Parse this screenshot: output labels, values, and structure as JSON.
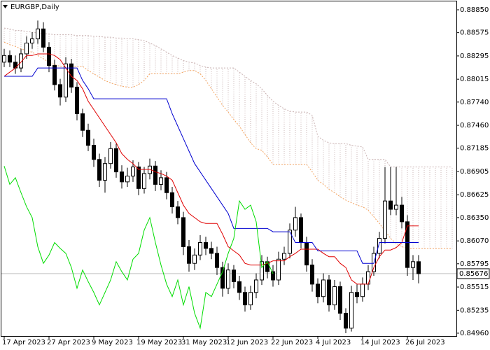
{
  "chart_data": {
    "type": "candlestick",
    "title": "EURGBP,Daily",
    "categories": [
      "17 Apr 2023",
      null,
      null,
      null,
      null,
      null,
      null,
      null,
      "27 Apr 2023",
      null,
      null,
      null,
      null,
      null,
      null,
      null,
      "9 May 2023",
      null,
      null,
      null,
      null,
      null,
      null,
      null,
      "19 May 2023",
      null,
      null,
      null,
      null,
      null,
      null,
      null,
      "31 May 2023",
      null,
      null,
      null,
      null,
      null,
      null,
      null,
      "12 Jun 2023",
      null,
      null,
      null,
      null,
      null,
      null,
      null,
      "22 Jun 2023",
      null,
      null,
      null,
      null,
      null,
      null,
      null,
      "4 Jul 2023",
      null,
      null,
      null,
      null,
      null,
      null,
      null,
      "14 Jul 2023",
      null,
      null,
      null,
      null,
      null,
      null,
      null,
      "26 Jul 2023",
      null,
      null,
      null,
      null,
      null,
      null,
      null,
      null
    ],
    "open": [
      0.8822,
      0.883,
      0.8822,
      0.8815,
      0.8832,
      0.8845,
      0.885,
      0.8862,
      0.884,
      0.8818,
      0.8795,
      0.878,
      0.882,
      0.8792,
      0.876,
      0.874,
      0.8722,
      0.8705,
      0.868,
      0.87,
      0.8718,
      0.869,
      0.8678,
      0.8685,
      0.8696,
      0.867,
      0.8688,
      0.8697,
      0.8675,
      0.8683,
      0.8665,
      0.8648,
      0.8635,
      0.86,
      0.858,
      0.859,
      0.8605,
      0.8598,
      0.8592,
      0.8575,
      0.855,
      0.8572,
      0.8558,
      0.8545,
      0.853,
      0.8545,
      0.856,
      0.8582,
      0.857,
      0.856,
      0.8585,
      0.8592,
      0.862,
      0.8635,
      0.8605,
      0.8578,
      0.8555,
      0.854,
      0.856,
      0.853,
      0.8552,
      0.852,
      0.8502,
      0.8545,
      0.854,
      0.8555,
      0.857,
      0.8592,
      0.861,
      0.8655,
      0.8645,
      0.865,
      0.863,
      0.8575,
      0.8582,
      null,
      null,
      null,
      null,
      null,
      null
    ],
    "high": [
      0.8838,
      0.8836,
      0.883,
      0.8838,
      0.8853,
      0.8858,
      0.8872,
      0.887,
      0.8846,
      0.8825,
      0.8802,
      0.8828,
      0.8826,
      0.8798,
      0.8766,
      0.8748,
      0.873,
      0.8712,
      0.8708,
      0.8726,
      0.8724,
      0.8698,
      0.8695,
      0.8704,
      0.8702,
      0.8696,
      0.8706,
      0.8703,
      0.8692,
      0.869,
      0.8672,
      0.8655,
      0.8642,
      0.8608,
      0.8598,
      0.8614,
      0.8612,
      0.8606,
      0.86,
      0.8582,
      0.858,
      0.8578,
      0.8565,
      0.8552,
      0.8553,
      0.8568,
      0.859,
      0.8588,
      0.8578,
      0.8594,
      0.86,
      0.8628,
      0.8648,
      0.864,
      0.8612,
      0.8585,
      0.8562,
      0.8568,
      0.8566,
      0.856,
      0.8558,
      0.8526,
      0.8553,
      0.8555,
      0.8563,
      0.8578,
      0.86,
      0.8618,
      0.8696,
      0.8696,
      0.8696,
      0.866,
      0.8638,
      0.859,
      0.859,
      null,
      null,
      null,
      null,
      null,
      null
    ],
    "low": [
      0.8816,
      0.8816,
      0.8808,
      0.881,
      0.8826,
      0.8838,
      0.8844,
      0.8834,
      0.881,
      0.8788,
      0.877,
      0.8774,
      0.8785,
      0.8752,
      0.8732,
      0.8715,
      0.8696,
      0.8672,
      0.8665,
      0.8694,
      0.8683,
      0.867,
      0.8672,
      0.8678,
      0.8662,
      0.8664,
      0.8681,
      0.8667,
      0.8668,
      0.8657,
      0.864,
      0.8627,
      0.859,
      0.857,
      0.8572,
      0.8584,
      0.859,
      0.8585,
      0.8566,
      0.854,
      0.8543,
      0.855,
      0.8536,
      0.8522,
      0.8524,
      0.8538,
      0.8554,
      0.8562,
      0.8552,
      0.8554,
      0.8578,
      0.8586,
      0.8612,
      0.8598,
      0.857,
      0.8546,
      0.8532,
      0.8533,
      0.8522,
      0.8524,
      0.8512,
      0.8496,
      0.8498,
      0.8532,
      0.8534,
      0.8548,
      0.8565,
      0.8586,
      0.8604,
      0.8638,
      0.8638,
      0.8622,
      0.8565,
      0.856,
      0.8556,
      null,
      null,
      null,
      null,
      null,
      null
    ],
    "close": [
      0.883,
      0.8822,
      0.8815,
      0.8832,
      0.8845,
      0.885,
      0.8862,
      0.884,
      0.8818,
      0.8795,
      0.878,
      0.882,
      0.8792,
      0.876,
      0.874,
      0.8722,
      0.8705,
      0.868,
      0.87,
      0.8718,
      0.869,
      0.8678,
      0.8685,
      0.8696,
      0.867,
      0.8688,
      0.8697,
      0.8675,
      0.8683,
      0.8665,
      0.8648,
      0.8635,
      0.86,
      0.858,
      0.859,
      0.8605,
      0.8598,
      0.8592,
      0.8575,
      0.855,
      0.8572,
      0.8558,
      0.8545,
      0.853,
      0.8545,
      0.856,
      0.8582,
      0.857,
      0.856,
      0.8585,
      0.8592,
      0.862,
      0.8635,
      0.8605,
      0.8578,
      0.8555,
      0.854,
      0.856,
      0.853,
      0.8552,
      0.852,
      0.8502,
      0.8545,
      0.854,
      0.8555,
      0.857,
      0.8592,
      0.861,
      0.8655,
      0.8645,
      0.865,
      0.863,
      0.8575,
      0.8582,
      0.85676,
      null,
      null,
      null,
      null,
      null,
      null
    ],
    "up_color": "#ffffff",
    "down_color": "#000000",
    "series": [
      {
        "color": "#e00000",
        "style": "solid",
        "values": [
          0.8805,
          0.881,
          0.8815,
          0.8822,
          0.883,
          0.883,
          0.8832,
          0.8832,
          0.8832,
          0.883,
          0.8825,
          0.8815,
          0.8805,
          0.88,
          0.879,
          0.8775,
          0.8765,
          0.8755,
          0.8745,
          0.8735,
          0.8725,
          0.8712,
          0.8705,
          0.87,
          0.8693,
          0.8693,
          0.8693,
          0.869,
          0.8688,
          0.8685,
          0.868,
          0.8665,
          0.865,
          0.864,
          0.8635,
          0.863,
          0.8628,
          0.8628,
          0.8628,
          0.8615,
          0.86,
          0.8595,
          0.859,
          0.858,
          0.8578,
          0.8578,
          0.8578,
          0.858,
          0.8583,
          0.8583,
          0.8583,
          0.8588,
          0.8592,
          0.8597,
          0.8597,
          0.8597,
          0.8597,
          0.8592,
          0.8588,
          0.8588,
          0.858,
          0.8575,
          0.856,
          0.8555,
          0.8555,
          0.8555,
          0.8575,
          0.8588,
          0.8596,
          0.8596,
          0.8599,
          0.8605,
          0.8625,
          0.8625,
          0.8625,
          null,
          null,
          null,
          null,
          null,
          null
        ]
      },
      {
        "color": "#0000d0",
        "style": "solid",
        "values": [
          0.8805,
          0.8805,
          0.8805,
          0.8805,
          0.8805,
          0.8805,
          0.8815,
          0.8815,
          0.8815,
          0.8815,
          0.8815,
          0.8815,
          0.8815,
          0.8815,
          0.88,
          0.879,
          0.8778,
          0.8778,
          0.8778,
          0.8778,
          0.8778,
          0.8778,
          0.8778,
          0.8778,
          0.8778,
          0.8778,
          0.8778,
          0.8778,
          0.8778,
          0.8778,
          0.876,
          0.8745,
          0.873,
          0.8715,
          0.87,
          0.869,
          0.868,
          0.867,
          0.866,
          0.865,
          0.864,
          0.8622,
          0.8622,
          0.8622,
          0.8622,
          0.8622,
          0.8622,
          0.8622,
          0.8618,
          0.8618,
          0.8618,
          0.8618,
          0.8605,
          0.8605,
          0.8605,
          0.8605,
          0.8595,
          0.8595,
          0.8595,
          0.8595,
          0.8595,
          0.8595,
          0.8595,
          0.8595,
          0.858,
          0.858,
          0.858,
          0.8605,
          0.8605,
          0.8605,
          0.8605,
          0.8605,
          0.8605,
          0.8605,
          0.8605,
          null,
          null,
          null,
          null,
          null,
          null
        ]
      },
      {
        "color": "#00dd00",
        "style": "solid",
        "values": [
          0.8697,
          0.8675,
          0.8683,
          0.8665,
          0.8648,
          0.8635,
          0.86,
          0.858,
          0.859,
          0.8605,
          0.8598,
          0.8592,
          0.8575,
          0.855,
          0.8572,
          0.8558,
          0.8545,
          0.853,
          0.8545,
          0.856,
          0.8582,
          0.857,
          0.856,
          0.8585,
          0.8592,
          0.862,
          0.8635,
          0.8605,
          0.8578,
          0.8555,
          0.854,
          0.856,
          0.853,
          0.8552,
          0.852,
          0.8502,
          0.8545,
          0.854,
          0.8555,
          0.857,
          0.8592,
          0.861,
          0.8655,
          0.8645,
          0.865,
          0.863,
          0.8575,
          0.8582,
          0.85676,
          null,
          null,
          null,
          null,
          null,
          null,
          null,
          null,
          null,
          null,
          null,
          null,
          null,
          null,
          null,
          null,
          null,
          null,
          null,
          null,
          null,
          null,
          null,
          null,
          null,
          null,
          null,
          null,
          null,
          null,
          null,
          null
        ]
      },
      {
        "color": "#f4a460",
        "style": "dotted",
        "values": [
          0.8846,
          0.8843,
          0.8841,
          0.8838,
          0.8836,
          0.8834,
          0.883,
          0.8826,
          0.8822,
          0.8819,
          0.8817,
          0.8817,
          0.8817,
          0.8817,
          0.8817,
          0.8812,
          0.8808,
          0.8804,
          0.88,
          0.8797,
          0.8795,
          0.8793,
          0.8792,
          0.8792,
          0.8795,
          0.88,
          0.8808,
          0.8808,
          0.8808,
          0.8808,
          0.8808,
          0.8808,
          0.881,
          0.8812,
          0.8812,
          0.8808,
          0.88,
          0.879,
          0.878,
          0.877,
          0.8762,
          0.8753,
          0.8745,
          0.8735,
          0.8725,
          0.8718,
          0.8716,
          0.8708,
          0.8699,
          0.8699,
          0.8699,
          0.8699,
          0.8699,
          0.8699,
          0.8699,
          0.869,
          0.868,
          0.8675,
          0.8669,
          0.8665,
          0.866,
          0.8656,
          0.8653,
          0.865,
          0.8648,
          0.8644,
          0.8636,
          0.8628,
          0.8619,
          0.861,
          0.8604,
          0.86,
          0.8598,
          0.8598,
          0.8598,
          0.8598,
          0.8598,
          0.8598,
          0.8598,
          0.8598,
          0.8598
        ]
      },
      {
        "color": "#c8b0b0",
        "style": "dotted",
        "values": [
          0.8863,
          0.8862,
          0.886,
          0.886,
          0.8859,
          0.8858,
          0.8857,
          0.8856,
          0.8856,
          0.8855,
          0.8855,
          0.8855,
          0.8855,
          0.8854,
          0.8854,
          0.8854,
          0.8853,
          0.8853,
          0.8852,
          0.8852,
          0.8851,
          0.8851,
          0.885,
          0.885,
          0.8849,
          0.8848,
          0.8845,
          0.8842,
          0.8838,
          0.8834,
          0.883,
          0.8827,
          0.8824,
          0.8822,
          0.8821,
          0.8818,
          0.8816,
          0.8815,
          0.8815,
          0.8815,
          0.8815,
          0.8815,
          0.881,
          0.8805,
          0.88,
          0.8796,
          0.879,
          0.8782,
          0.8775,
          0.877,
          0.8766,
          0.8763,
          0.8762,
          0.8762,
          0.8762,
          0.8758,
          0.8733,
          0.8728,
          0.8725,
          0.8724,
          0.8724,
          0.8724,
          0.8722,
          0.8721,
          0.872,
          0.8705,
          0.8705,
          0.8705,
          0.8705,
          0.8696,
          0.8696,
          0.8696,
          0.8696,
          0.8696,
          0.8696,
          0.8696,
          0.8696,
          0.8696,
          0.8696,
          0.8696,
          0.8696
        ]
      }
    ],
    "cloud_color": "#c8b4b4",
    "price_line_color": "#c0c0c0",
    "ylim": [
      0.84926,
      0.88951
    ],
    "yticks": [
      {
        "value": 0.8885,
        "label": "0.88850"
      },
      0.88575,
      0.88295,
      0.88015,
      {
        "value": 0.8774,
        "label": "0.87740"
      },
      {
        "value": 0.8746,
        "label": "0.87460"
      },
      0.87185,
      0.86905,
      0.86625,
      {
        "value": 0.8635,
        "label": "0.86350"
      },
      {
        "value": 0.8607,
        "label": "0.86070"
      },
      0.85795,
      0.85515,
      0.85235,
      {
        "value": 0.8496,
        "label": "0.84960"
      }
    ],
    "grid": false
  }
}
